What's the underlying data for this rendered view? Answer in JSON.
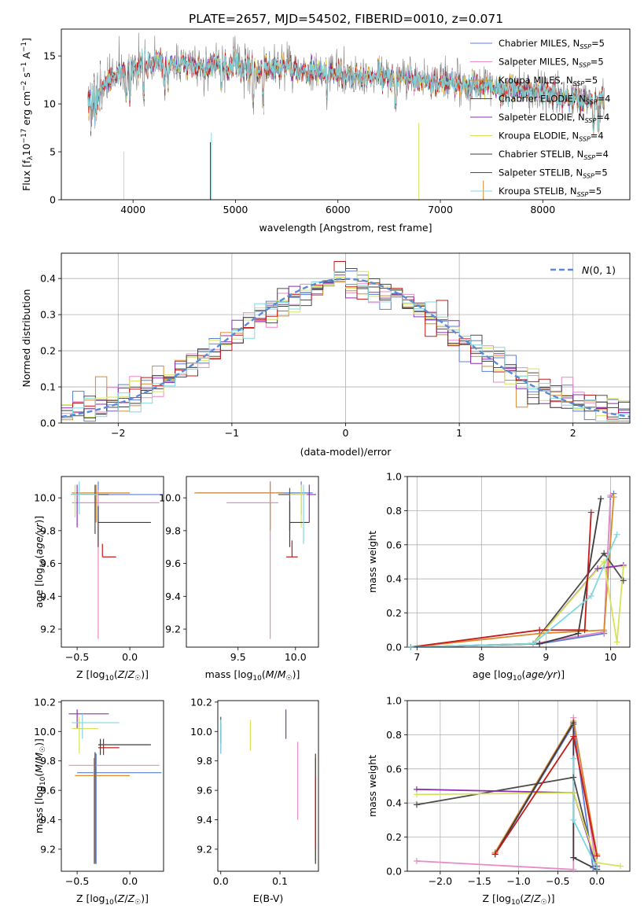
{
  "figure_title": "PLATE=2657, MJD=54502, FIBERID=0010, z=0.071",
  "series_colors": [
    "#5b7fd6",
    "#e88ac6",
    "#d98a2e",
    "#4d4d4d",
    "#8e2fb3",
    "#d6e35a",
    "#3d3d3d",
    "#c41a1a",
    "#7fd8e0"
  ],
  "chart_data": [
    {
      "id": "spectrum",
      "type": "line",
      "xlabel": "wavelength [Angstrom, rest frame]",
      "ylabel": "Flux [f_λ 10^-17 erg cm^-2 s^-1 A^-1]",
      "xlim": [
        3300,
        8850
      ],
      "ylim": [
        0,
        17.8
      ],
      "xticks": [
        4000,
        5000,
        6000,
        7000,
        8000
      ],
      "yticks": [
        0,
        5,
        10,
        15
      ],
      "grid": false,
      "legend": "upper right",
      "continuum": {
        "x": [
          3550,
          3650,
          3750,
          3850,
          3950,
          4050,
          4200,
          4400,
          4600,
          4800,
          5000,
          5200,
          5400,
          5600,
          5800,
          6000,
          6200,
          6400,
          6600,
          6800,
          7000,
          7200,
          7400,
          7600,
          7800,
          8000,
          8200,
          8400,
          8600
        ],
        "y": [
          9.0,
          11.0,
          12.5,
          13.2,
          13.5,
          14.0,
          14.2,
          14.2,
          14.0,
          14.1,
          13.8,
          13.7,
          13.8,
          13.6,
          13.4,
          13.1,
          12.9,
          12.8,
          12.7,
          12.5,
          12.2,
          12.0,
          11.9,
          11.6,
          11.3,
          11.1,
          10.7,
          10.4,
          10.1
        ]
      },
      "series": [
        {
          "name": "Chabrier MILES, N_SSP=5"
        },
        {
          "name": "Salpeter MILES, N_SSP=5"
        },
        {
          "name": "Kroupa MILES, N_SSP=5"
        },
        {
          "name": "Chabrier ELODIE, N_SSP=4"
        },
        {
          "name": "Salpeter ELODIE, N_SSP=4"
        },
        {
          "name": "Kroupa ELODIE, N_SSP=4"
        },
        {
          "name": "Chabrier STELIB, N_SSP=4"
        },
        {
          "name": "Salpeter STELIB, N_SSP=5"
        },
        {
          "name": "Kroupa STELIB, N_SSP=5"
        }
      ]
    },
    {
      "id": "residuals",
      "type": "line",
      "xlabel": "(data-model)/error",
      "ylabel": "Normed distribution",
      "xlim": [
        -2.5,
        2.5
      ],
      "ylim": [
        0,
        0.47
      ],
      "xticks": [
        -2,
        -1,
        0,
        1,
        2
      ],
      "yticks": [
        0.0,
        0.1,
        0.2,
        0.3,
        0.4
      ],
      "grid": true,
      "legend": "upper right",
      "legend_label": "N(0,1)",
      "bin_width": 0.1
    },
    {
      "id": "age_vs_Z",
      "type": "scatter",
      "xlabel": "Z [log10(Z/Z☉)]",
      "ylabel": "age [log10(age/yr)]",
      "xlim": [
        -0.65,
        0.32
      ],
      "ylim": [
        9.09,
        10.13
      ],
      "xticks": [
        -0.5,
        0.0
      ],
      "yticks": [
        9.2,
        9.4,
        9.6,
        9.8,
        10.0
      ],
      "points": [
        {
          "c": 0,
          "x": -0.3,
          "xl": -0.55,
          "xh": 0.3,
          "y": 10.02,
          "yl": 9.85,
          "yh": 10.1
        },
        {
          "c": 1,
          "x": -0.3,
          "xl": -0.55,
          "xh": 0.28,
          "y": 9.97,
          "yl": 9.14,
          "yh": 10.05
        },
        {
          "c": 2,
          "x": -0.32,
          "xl": -0.55,
          "xh": 0.0,
          "y": 10.03,
          "yl": 9.85,
          "yh": 10.08
        },
        {
          "c": 3,
          "x": -0.33,
          "xl": -0.5,
          "xh": -0.2,
          "y": 10.02,
          "yl": 9.78,
          "yh": 10.08
        },
        {
          "c": 4,
          "x": -0.5,
          "xl": -0.56,
          "xh": -0.3,
          "y": 10.02,
          "yl": 9.82,
          "yh": 10.08
        },
        {
          "c": 5,
          "x": -0.52,
          "xl": -0.56,
          "xh": -0.3,
          "y": 10.02,
          "yl": 9.88,
          "yh": 10.08
        },
        {
          "c": 6,
          "x": -0.3,
          "xl": -0.3,
          "xh": 0.2,
          "y": 9.85,
          "yl": 9.7,
          "yh": 9.95
        },
        {
          "c": 7,
          "x": -0.26,
          "xl": -0.26,
          "xh": -0.13,
          "y": 9.64,
          "yl": 9.64,
          "yh": 9.72
        },
        {
          "c": 8,
          "x": -0.48,
          "xl": -0.56,
          "xh": -0.3,
          "y": 10.02,
          "yl": 9.9,
          "yh": 10.1
        }
      ]
    },
    {
      "id": "age_vs_mass",
      "type": "scatter",
      "xlabel": "mass [log10(M/M☉)]",
      "ylabel": "",
      "xlim": [
        9.05,
        10.2
      ],
      "ylim": [
        9.09,
        10.13
      ],
      "xticks": [
        9.5,
        10.0
      ],
      "yticks": [
        9.2,
        9.4,
        9.6,
        9.8,
        10.0
      ],
      "points": [
        {
          "c": 0,
          "x": 10.05,
          "xl": 9.15,
          "xh": 10.15,
          "y": 10.03,
          "yl": 9.9,
          "yh": 10.1
        },
        {
          "c": 1,
          "x": 9.78,
          "xl": 9.4,
          "xh": 9.85,
          "y": 9.97,
          "yl": 9.14,
          "yh": 10.1
        },
        {
          "c": 2,
          "x": 9.78,
          "xl": 9.12,
          "xh": 9.9,
          "y": 10.03,
          "yl": 9.8,
          "yh": 10.1
        },
        {
          "c": 3,
          "x": 9.95,
          "xl": 9.85,
          "xh": 10.0,
          "y": 10.02,
          "yl": 9.8,
          "yh": 10.06
        },
        {
          "c": 4,
          "x": 10.12,
          "xl": 9.98,
          "xh": 10.18,
          "y": 10.02,
          "yl": 9.85,
          "yh": 10.08
        },
        {
          "c": 5,
          "x": 10.05,
          "xl": 9.95,
          "xh": 10.1,
          "y": 10.02,
          "yl": 9.82,
          "yh": 10.08
        },
        {
          "c": 6,
          "x": 9.95,
          "xl": 9.95,
          "xh": 10.12,
          "y": 9.85,
          "yl": 9.7,
          "yh": 9.98
        },
        {
          "c": 7,
          "x": 9.97,
          "xl": 9.92,
          "xh": 10.02,
          "y": 9.64,
          "yl": 9.64,
          "yh": 9.74
        },
        {
          "c": 8,
          "x": 10.07,
          "xl": 10.07,
          "xh": 10.07,
          "y": 10.0,
          "yl": 9.72,
          "yh": 10.08
        }
      ]
    },
    {
      "id": "weight_vs_age",
      "type": "line",
      "xlabel": "age [log10(age/yr)]",
      "ylabel": "mass weight",
      "xlim": [
        6.85,
        10.3
      ],
      "ylim": [
        0,
        1.0
      ],
      "xticks": [
        7,
        8,
        9,
        10
      ],
      "yticks": [
        0.0,
        0.2,
        0.4,
        0.6,
        0.8,
        1.0
      ],
      "grid": true,
      "series": [
        {
          "c": 0,
          "x": [
            6.9,
            8.9,
            9.9,
            10.0,
            10.05
          ],
          "y": [
            0.0,
            0.02,
            0.08,
            0.88,
            0.9
          ]
        },
        {
          "c": 1,
          "x": [
            6.9,
            8.8,
            9.9,
            10.0
          ],
          "y": [
            0.0,
            0.02,
            0.09,
            0.89
          ]
        },
        {
          "c": 2,
          "x": [
            6.9,
            8.9,
            9.9,
            10.05
          ],
          "y": [
            0.0,
            0.08,
            0.1,
            0.88
          ]
        },
        {
          "c": 3,
          "x": [
            6.9,
            8.8,
            9.9,
            10.2
          ],
          "y": [
            0.0,
            0.02,
            0.55,
            0.39
          ]
        },
        {
          "c": 4,
          "x": [
            6.9,
            8.8,
            9.8,
            10.2
          ],
          "y": [
            0.0,
            0.02,
            0.46,
            0.48
          ]
        },
        {
          "c": 5,
          "x": [
            6.9,
            8.8,
            9.9,
            10.1,
            10.2
          ],
          "y": [
            0.0,
            0.02,
            0.5,
            0.03,
            0.47
          ]
        },
        {
          "c": 6,
          "x": [
            6.9,
            8.9,
            9.5,
            9.85
          ],
          "y": [
            0.0,
            0.02,
            0.08,
            0.87
          ]
        },
        {
          "c": 7,
          "x": [
            6.9,
            8.9,
            9.6,
            9.7
          ],
          "y": [
            0.0,
            0.1,
            0.1,
            0.79
          ]
        },
        {
          "c": 8,
          "x": [
            6.9,
            8.8,
            9.7,
            10.1
          ],
          "y": [
            0.0,
            0.02,
            0.3,
            0.66
          ]
        }
      ]
    },
    {
      "id": "mass_vs_Z",
      "type": "scatter",
      "xlabel": "Z [log10(Z/Z☉)]",
      "ylabel": "mass [log10(M/M☉)]",
      "xlim": [
        -0.65,
        0.32
      ],
      "ylim": [
        9.05,
        10.21
      ],
      "xticks": [
        -0.5,
        0.0
      ],
      "yticks": [
        9.2,
        9.4,
        9.6,
        9.8,
        10.0,
        10.2
      ],
      "points": [
        {
          "c": 0,
          "x": -0.32,
          "xl": -0.5,
          "xh": 0.3,
          "y": 9.72,
          "yl": 9.1,
          "yh": 9.85
        },
        {
          "c": 1,
          "x": -0.33,
          "xl": -0.58,
          "xh": 0.28,
          "y": 9.77,
          "yl": 9.12,
          "yh": 9.85
        },
        {
          "c": 2,
          "x": -0.34,
          "xl": -0.52,
          "xh": 0.0,
          "y": 9.7,
          "yl": 9.1,
          "yh": 9.82
        },
        {
          "c": 3,
          "x": -0.33,
          "xl": -0.33,
          "xh": -0.33,
          "y": 9.82,
          "yl": 9.1,
          "yh": 9.86
        },
        {
          "c": 4,
          "x": -0.5,
          "xl": -0.58,
          "xh": -0.2,
          "y": 10.12,
          "yl": 10.02,
          "yh": 10.15
        },
        {
          "c": 5,
          "x": -0.48,
          "xl": -0.55,
          "xh": -0.3,
          "y": 10.02,
          "yl": 9.85,
          "yh": 10.1
        },
        {
          "c": 6,
          "x": -0.28,
          "xl": -0.3,
          "xh": 0.2,
          "y": 9.91,
          "yl": 9.84,
          "yh": 9.95
        },
        {
          "c": 7,
          "x": -0.25,
          "xl": -0.3,
          "xh": -0.1,
          "y": 9.89,
          "yl": 9.84,
          "yh": 9.95
        },
        {
          "c": 8,
          "x": -0.45,
          "xl": -0.55,
          "xh": -0.1,
          "y": 10.06,
          "yl": 9.95,
          "yh": 10.12
        }
      ]
    },
    {
      "id": "mass_vs_EBV",
      "type": "scatter",
      "xlabel": "E(B-V)",
      "ylabel": "",
      "xlim": [
        -0.005,
        0.165
      ],
      "ylim": [
        9.05,
        10.21
      ],
      "xticks": [
        0.0,
        0.1
      ],
      "yticks": [
        9.2,
        9.4,
        9.6,
        9.8,
        10.0,
        10.2
      ],
      "points": [
        {
          "c": 0,
          "x": 0.0,
          "yl": 9.85,
          "yh": 10.05
        },
        {
          "c": 1,
          "x": 0.13,
          "yl": 9.4,
          "yh": 9.93
        },
        {
          "c": 2,
          "x": 0.16,
          "yl": 9.12,
          "yh": 9.82
        },
        {
          "c": 3,
          "x": 0.0,
          "yl": 9.92,
          "yh": 10.1
        },
        {
          "c": 4,
          "x": 0.11,
          "yl": 9.95,
          "yh": 10.15
        },
        {
          "c": 5,
          "x": 0.05,
          "yl": 9.87,
          "yh": 10.08
        },
        {
          "c": 6,
          "x": 0.16,
          "yl": 9.1,
          "yh": 9.85
        },
        {
          "c": 7,
          "x": 0.16,
          "yl": 9.2,
          "yh": 9.7
        },
        {
          "c": 8,
          "x": 0.0,
          "yl": 9.85,
          "yh": 10.08
        }
      ]
    },
    {
      "id": "weight_vs_Z",
      "type": "line",
      "xlabel": "Z [log10(Z/Z☉)]",
      "ylabel": "mass weight",
      "xlim": [
        -2.42,
        0.42
      ],
      "ylim": [
        0,
        1.0
      ],
      "xticks": [
        -2.0,
        -1.5,
        -1.0,
        -0.5,
        0.0
      ],
      "yticks": [
        0.0,
        0.2,
        0.4,
        0.6,
        0.8,
        1.0
      ],
      "grid": true,
      "series": [
        {
          "c": 0,
          "x": [
            -1.3,
            -0.3,
            -0.05,
            0.0
          ],
          "y": [
            0.1,
            0.86,
            0.02,
            0.01
          ]
        },
        {
          "c": 1,
          "x": [
            -2.3,
            -0.3,
            -0.3,
            0.0
          ],
          "y": [
            0.06,
            0.01,
            0.9,
            0.01
          ]
        },
        {
          "c": 2,
          "x": [
            -1.3,
            -0.3,
            0.0
          ],
          "y": [
            0.11,
            0.88,
            0.1
          ]
        },
        {
          "c": 3,
          "x": [
            -2.3,
            -0.3,
            0.0
          ],
          "y": [
            0.39,
            0.55,
            0.0
          ]
        },
        {
          "c": 4,
          "x": [
            -2.3,
            -0.3,
            0.0
          ],
          "y": [
            0.48,
            0.46,
            0.03
          ]
        },
        {
          "c": 5,
          "x": [
            -2.3,
            -0.3,
            0.0,
            0.3
          ],
          "y": [
            0.45,
            0.46,
            0.05,
            0.03
          ]
        },
        {
          "c": 6,
          "x": [
            -1.3,
            -0.3,
            -0.3,
            0.0
          ],
          "y": [
            0.1,
            0.87,
            0.08,
            0.01
          ]
        },
        {
          "c": 7,
          "x": [
            -1.3,
            -0.3,
            0.0
          ],
          "y": [
            0.1,
            0.79,
            0.09
          ]
        },
        {
          "c": 8,
          "x": [
            -0.3,
            -0.3,
            0.0
          ],
          "y": [
            0.66,
            0.3,
            0.02
          ]
        }
      ]
    }
  ]
}
